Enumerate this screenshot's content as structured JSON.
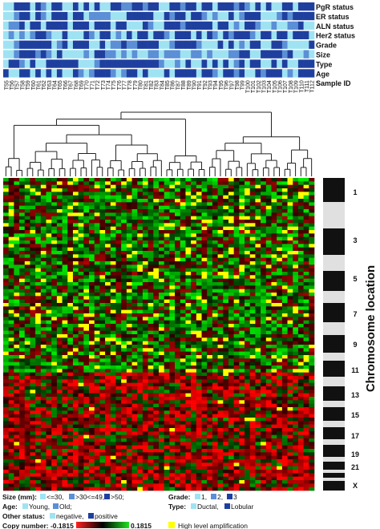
{
  "chart_data": {
    "type": "heatmap",
    "annotation_tracks": [
      {
        "label": "PgR status"
      },
      {
        "label": "ER status"
      },
      {
        "label": "ALN status"
      },
      {
        "label": "Her2 status"
      },
      {
        "label": "Grade"
      },
      {
        "label": "Size"
      },
      {
        "label": "Type"
      },
      {
        "label": "Age"
      },
      {
        "label": "Sample ID"
      }
    ],
    "sample_ids": [
      "T55",
      "T56",
      "T57",
      "T58",
      "T59",
      "T60",
      "T61",
      "T62",
      "T63",
      "T64",
      "T65",
      "T66",
      "T67",
      "T68",
      "T69",
      "T70",
      "T71",
      "T72",
      "T73",
      "T74",
      "T75",
      "T76",
      "T77",
      "T78",
      "T79",
      "T80",
      "T81",
      "T82",
      "T83",
      "T84",
      "T85",
      "T86",
      "T87",
      "T88",
      "T89",
      "T90",
      "T91",
      "T92",
      "T93",
      "T94",
      "T95",
      "T96",
      "T97",
      "T98",
      "T99",
      "T100",
      "T101",
      "T102",
      "T103",
      "T104",
      "T105",
      "T106",
      "T107",
      "T108",
      "T109",
      "T110",
      "T111",
      "T112"
    ],
    "chromosome_axis_label": "Chromosome location",
    "chromosome_labels": [
      "1",
      "3",
      "5",
      "7",
      "9",
      "11",
      "13",
      "15",
      "17",
      "19",
      "21",
      "X"
    ],
    "color_scale": {
      "label": "Copy number:",
      "min": -0.1815,
      "max": 0.1815,
      "min_label": "-0.1815",
      "max_label": "0.1815",
      "low_color": "#ff2020",
      "mid_color": "#000000",
      "high_color": "#20e020",
      "amplification_color": "#ffff00"
    },
    "colors": {
      "light": "#9fe3f3",
      "medium": "#5b8fd6",
      "dark": "#1f3f9f"
    }
  },
  "legend": {
    "size_label": "Size (mm):",
    "size_items": [
      "<=30,",
      ">30<=49,",
      ">50;"
    ],
    "grade_label": "Grade:",
    "grade_items": [
      "1,",
      "2,",
      "3"
    ],
    "age_label": "Age:",
    "age_items": [
      "Young,",
      "Old;"
    ],
    "type_label": "Type:",
    "type_items": [
      "Ductal,",
      "Lobular"
    ],
    "other_label": "Other status:",
    "other_items": [
      "negative,",
      "positive"
    ],
    "copy_label": "Copy number: -0.1815",
    "copy_max": "0.1815",
    "amp_label": "High level amplification"
  }
}
